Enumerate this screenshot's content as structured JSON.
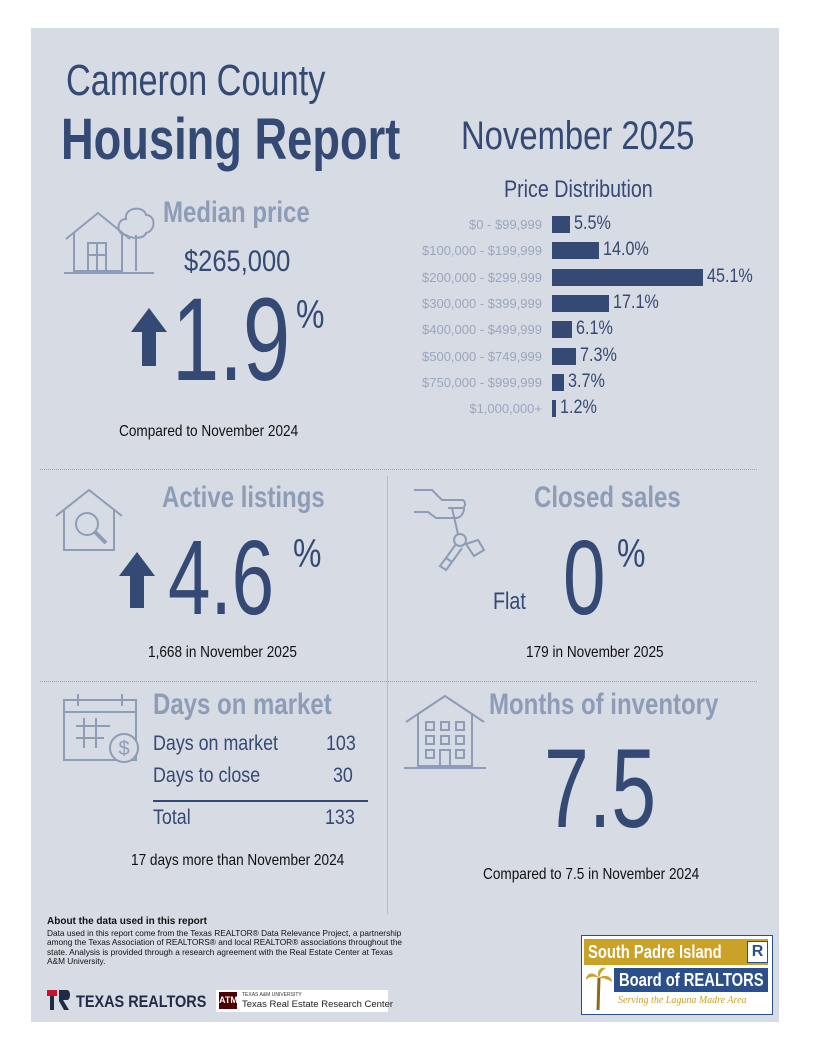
{
  "header": {
    "title_line1": "Cameron County",
    "title_line2": "Housing Report",
    "month": "November 2025"
  },
  "colors": {
    "navy": "#344a74",
    "muted": "#8d9db8",
    "panel": "#d7dbe3",
    "gold": "#c9a227"
  },
  "median_price": {
    "title": "Median price",
    "value": "$265,000",
    "change": "1.9",
    "pct": "%",
    "direction": "up",
    "caption": "Compared to November 2024"
  },
  "price_distribution": {
    "title": "Price Distribution",
    "chart_data": {
      "type": "bar",
      "categories": [
        "$0 - $99,999",
        "$100,000 - $199,999",
        "$200,000 - $299,999",
        "$300,000 - $399,999",
        "$400,000 - $499,999",
        "$500,000 - $749,999",
        "$750,000 - $999,999",
        "$1,000,000+"
      ],
      "values": [
        5.5,
        14.0,
        45.1,
        17.1,
        6.1,
        7.3,
        3.7,
        1.2
      ],
      "value_labels": [
        "5.5%",
        "14.0%",
        "45.1%",
        "17.1%",
        "6.1%",
        "7.3%",
        "3.7%",
        "1.2%"
      ],
      "orientation": "horizontal"
    }
  },
  "active_listings": {
    "title": "Active listings",
    "change": "4.6",
    "pct": "%",
    "direction": "up",
    "caption": "1,668 in November 2025"
  },
  "closed_sales": {
    "title": "Closed sales",
    "change": "0",
    "pct": "%",
    "flat_label": "Flat",
    "caption": "179 in November 2025"
  },
  "days_on_market": {
    "title": "Days on market",
    "rows": [
      {
        "label": "Days on market",
        "value": "103"
      },
      {
        "label": "Days to close",
        "value": "30"
      }
    ],
    "total_label": "Total",
    "total_value": "133",
    "caption": "17 days more than November 2024"
  },
  "months_inventory": {
    "title": "Months of inventory",
    "value": "7.5",
    "caption": "Compared to 7.5 in November 2024"
  },
  "about": {
    "heading": "About the data used in this report",
    "body": "Data used in this report come from the Texas REALTOR® Data Relevance Project, a partnership among the Texas Association of REALTORS® and local REALTOR® associations throughout the state. Analysis is provided through a research agreement with the Real Estate Center at Texas A&M University."
  },
  "logos": {
    "texas_realtors": "TEXAS REALTORS",
    "tamu_small": "TEXAS A&M UNIVERSITY",
    "tamu_center": "Texas Real Estate Research Center",
    "spi_line1": "South Padre Island",
    "spi_line2": "Board of REALTORS",
    "spi_tagline": "Serving the Laguna Madre Area"
  }
}
